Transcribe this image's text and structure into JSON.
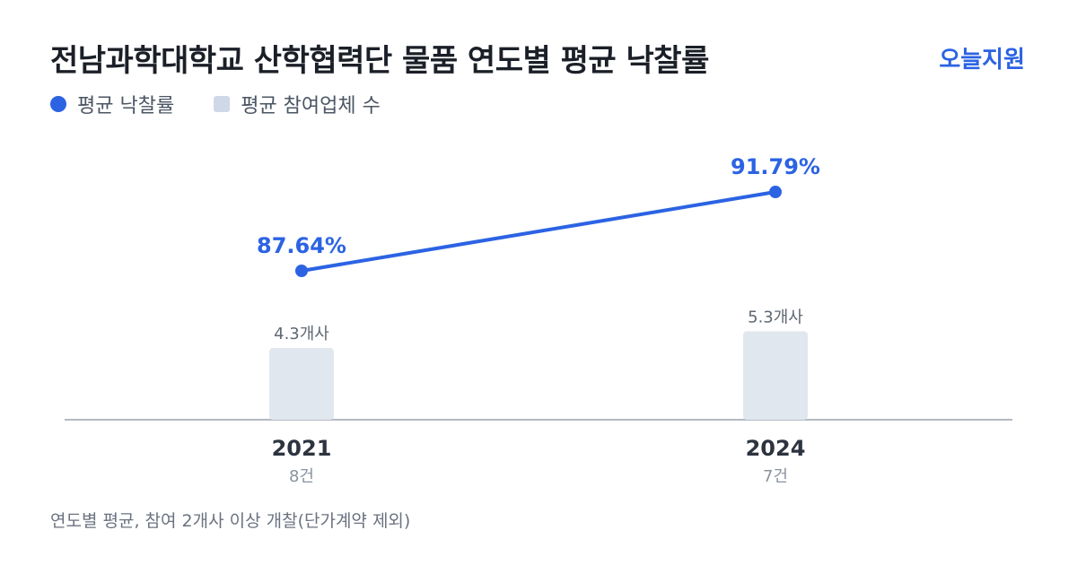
{
  "header": {
    "title": "전남과학대학교 산학협력단 물품 연도별 평균 낙찰률",
    "brand": "오늘지원"
  },
  "legend": {
    "rate_label": "평균 낙찰률",
    "bidders_label": "평균 참여업체 수"
  },
  "colors": {
    "line": "#2b63e3",
    "bar": "#e1e7ef",
    "axis": "#9aa3ae"
  },
  "footnote": "연도별 평균, 참여 2개사 이상 개찰(단가계약 제외)",
  "chart_data": {
    "type": "bar-line",
    "categories": [
      "2021",
      "2024"
    ],
    "counts": [
      "8건",
      "7건"
    ],
    "line_series": {
      "values": [
        87.64,
        91.79
      ],
      "labels": [
        "87.64%",
        "91.79%"
      ]
    },
    "bar_series": {
      "values": [
        4.3,
        5.3
      ],
      "labels": [
        "4.3개사",
        "5.3개사"
      ]
    }
  }
}
